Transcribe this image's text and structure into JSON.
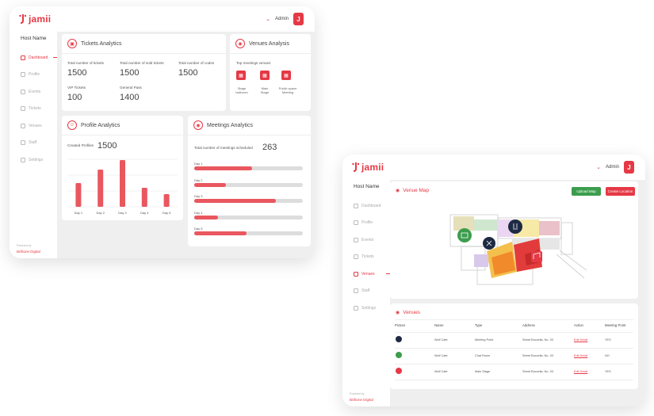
{
  "brand": {
    "name": "jamii",
    "color": "#e53945"
  },
  "dashboard": {
    "user": {
      "name": "Admin",
      "avatar_letter": "J"
    },
    "sidebar": {
      "host": "Host Name",
      "items": [
        {
          "label": "Dashboard",
          "icon": "grid-icon",
          "active": true
        },
        {
          "label": "Profile",
          "icon": "user-icon"
        },
        {
          "label": "Events",
          "icon": "star-icon"
        },
        {
          "label": "Tickets",
          "icon": "ticket-icon"
        },
        {
          "label": "Venues",
          "icon": "pin-icon"
        },
        {
          "label": "Staff",
          "icon": "staff-icon"
        },
        {
          "label": "Settings",
          "icon": "gear-icon"
        }
      ],
      "powered": "Powered by",
      "company": "Brillione Digital"
    },
    "tickets": {
      "title": "Tickets Analytics",
      "total_label": "Total number of tickets",
      "total_value": "1500",
      "sold_label": "Total number of sold tickets",
      "sold_value": "1500",
      "codes_label": "Total number of codes",
      "codes_value": "1500",
      "vip_label": "VIP Tickets",
      "vip_value": "100",
      "general_label": "General Pass",
      "general_value": "1400"
    },
    "venues": {
      "title": "Venues Analysis",
      "top_label": "Top meetings venues",
      "items": [
        {
          "line1": "Stage",
          "line2": "ballroom"
        },
        {
          "line1": "Main",
          "line2": "Stage"
        },
        {
          "line1": "Public space",
          "line2": "Meeting"
        }
      ]
    },
    "profile": {
      "title": "Profile Analytics",
      "created_label": "Created Profiles",
      "created_value": "1500"
    },
    "meetings": {
      "title": "Meetings Analytics",
      "total_label": "Total number of meetings scheduled",
      "total_value": "263",
      "days": [
        {
          "label": "Day 1",
          "fraction": 0.53
        },
        {
          "label": "Day 2",
          "fraction": 0.29
        },
        {
          "label": "Day 3",
          "fraction": 0.75
        },
        {
          "label": "Day 4",
          "fraction": 0.22
        },
        {
          "label": "Day 5",
          "fraction": 0.48
        }
      ]
    }
  },
  "chart_data": {
    "type": "bar",
    "categories": [
      "Day 1",
      "Day 2",
      "Day 3",
      "Day 4",
      "Day 5"
    ],
    "values": [
      30,
      47,
      59,
      24,
      16
    ],
    "ylim": [
      0,
      60
    ],
    "grid": true,
    "color": "#e9575f"
  },
  "venue_window": {
    "user": {
      "name": "Admin",
      "avatar_letter": "J"
    },
    "sidebar": {
      "host": "Host Name",
      "items": [
        {
          "label": "Dashboard",
          "icon": "grid-icon"
        },
        {
          "label": "Profile",
          "icon": "user-icon"
        },
        {
          "label": "Events",
          "icon": "star-icon"
        },
        {
          "label": "Tickets",
          "icon": "ticket-icon"
        },
        {
          "label": "Venues",
          "icon": "pin-icon",
          "active": true
        },
        {
          "label": "Staff",
          "icon": "staff-icon"
        },
        {
          "label": "Settings",
          "icon": "gear-icon"
        }
      ],
      "powered": "Powered by",
      "company": "Brillione Digital"
    },
    "map": {
      "title": "Venue Map",
      "upload_label": "Upload Map",
      "create_label": "Create Location",
      "upload_color": "#3c9d4d",
      "create_color": "#e53945"
    },
    "table": {
      "title": "Venues",
      "headers": [
        "Picture",
        "Name",
        "Type",
        "Address",
        "Action",
        "Meeting Point"
      ],
      "rows": [
        {
          "pic_color": "#1e2a44",
          "name": "Wolf Cafe",
          "type": "Meeting Point",
          "address": "Street Boccella, No. 33",
          "action": "Edit Detail",
          "meeting": "YES"
        },
        {
          "pic_color": "#3c9d4d",
          "name": "Wolf Cafe",
          "type": "Chat Room",
          "address": "Street Boccella, No. 33",
          "action": "Edit Detail",
          "meeting": "NO"
        },
        {
          "pic_color": "#e53945",
          "name": "Wolf Cafe",
          "type": "Main Stage",
          "address": "Street Boccella, No. 33",
          "action": "Edit Detail",
          "meeting": "YES"
        }
      ]
    }
  }
}
